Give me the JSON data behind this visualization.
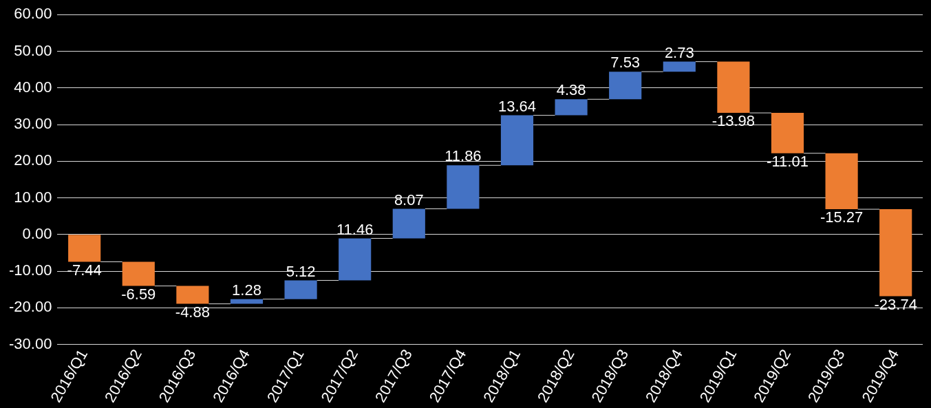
{
  "chart_data": {
    "type": "bar",
    "categories": [
      "2016/Q1",
      "2016/Q2",
      "2016/Q3",
      "2016/Q4",
      "2017/Q1",
      "2017/Q2",
      "2017/Q3",
      "2017/Q4",
      "2018/Q1",
      "2018/Q2",
      "2018/Q3",
      "2018/Q4",
      "2019/Q1",
      "2019/Q2",
      "2019/Q3",
      "2019/Q4"
    ],
    "values": [
      -7.44,
      -6.59,
      -4.88,
      1.28,
      5.12,
      11.46,
      8.07,
      11.86,
      13.64,
      4.38,
      7.53,
      2.73,
      -13.98,
      -11.01,
      -15.27,
      -23.74
    ],
    "base": [
      0,
      -7.44,
      -14.03,
      -18.91,
      -17.63,
      -12.51,
      -1.05,
      7.02,
      18.88,
      32.52,
      36.9,
      44.43,
      47.16,
      33.18,
      22.17,
      6.9
    ],
    "colors": [
      "#ed7d31",
      "#ed7d31",
      "#ed7d31",
      "#4472c4",
      "#4472c4",
      "#4472c4",
      "#4472c4",
      "#4472c4",
      "#4472c4",
      "#4472c4",
      "#4472c4",
      "#4472c4",
      "#ed7d31",
      "#ed7d31",
      "#ed7d31",
      "#ed7d31"
    ],
    "ylim": [
      -30,
      60
    ],
    "yticks": [
      {
        "value": -30,
        "label": "-30.00"
      },
      {
        "value": -20,
        "label": "-20.00"
      },
      {
        "value": -10,
        "label": "-10.00"
      },
      {
        "value": 0,
        "label": "0.00"
      },
      {
        "value": 10,
        "label": "10.00"
      },
      {
        "value": 20,
        "label": "20.00"
      },
      {
        "value": 30,
        "label": "30.00"
      },
      {
        "value": 40,
        "label": "40.00"
      },
      {
        "value": 50,
        "label": "50.00"
      },
      {
        "value": 60,
        "label": "60.00"
      }
    ],
    "grid": "y",
    "legend": false,
    "data_labels": true
  }
}
